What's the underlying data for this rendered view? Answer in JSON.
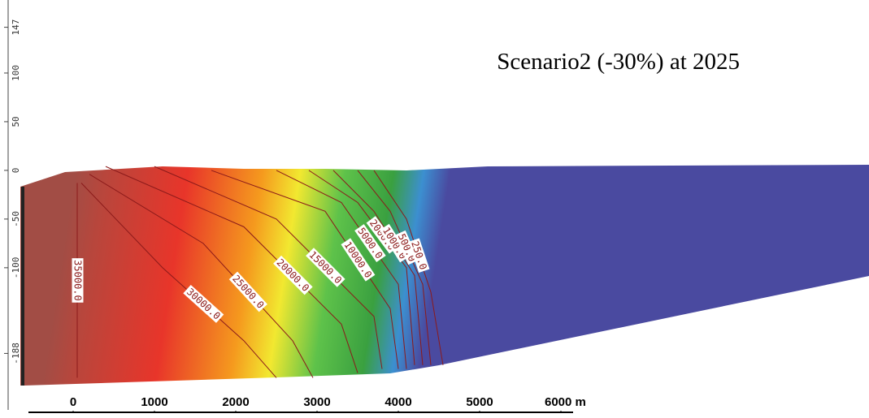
{
  "chart_data": {
    "type": "contour",
    "title": "Scenario2 (-30%) at 2025",
    "xlim": [
      -900,
      9790
    ],
    "ylim": [
      -221,
      175
    ],
    "xticks": [
      0,
      1000,
      2000,
      3000,
      4000,
      5000,
      {
        "value": 6000,
        "label": "6000 m"
      }
    ],
    "yticks": [
      147,
      100,
      50,
      0,
      -50,
      -100,
      -188
    ],
    "line_color": "#8b1a1a",
    "contours": [
      {
        "level": 35000,
        "label": "35000.0",
        "x": [
          50,
          50
        ],
        "y": [
          -13,
          -213
        ]
      },
      {
        "level": 30000,
        "label": "30000.0",
        "x": [
          100,
          1100,
          2100,
          2500
        ],
        "y": [
          -13,
          -100,
          -175,
          -213
        ]
      },
      {
        "level": 25000,
        "label": "25000.0",
        "x": [
          200,
          1600,
          2700,
          2950
        ],
        "y": [
          -4,
          -75,
          -175,
          -213
        ]
      },
      {
        "level": 20000,
        "label": "20000.0",
        "x": [
          400,
          2100,
          3300,
          3500
        ],
        "y": [
          4,
          -58,
          -158,
          -208
        ]
      },
      {
        "level": 15000,
        "label": "15000.0",
        "x": [
          1000,
          2500,
          3700,
          3800
        ],
        "y": [
          4,
          -50,
          -150,
          -204
        ]
      },
      {
        "level": 10000,
        "label": "10000.0",
        "x": [
          1700,
          3100,
          3900,
          4000
        ],
        "y": [
          0,
          -42,
          -142,
          -204
        ]
      },
      {
        "level": 5000,
        "label": "5000.0",
        "x": [
          2500,
          3300,
          4000,
          4100
        ],
        "y": [
          0,
          -33,
          -117,
          -204
        ]
      },
      {
        "level": 2000,
        "label": "2000.0",
        "x": [
          2900,
          3500,
          4100,
          4200
        ],
        "y": [
          0,
          -33,
          -100,
          -200
        ]
      },
      {
        "level": 1000,
        "label": "1000.0",
        "x": [
          3200,
          3700,
          4200,
          4300
        ],
        "y": [
          0,
          -42,
          -108,
          -200
        ]
      },
      {
        "level": 500,
        "label": "500.0",
        "x": [
          3500,
          3900,
          4300,
          4400
        ],
        "y": [
          0,
          -42,
          -117,
          -200
        ]
      },
      {
        "level": 250,
        "label": "250.0",
        "x": [
          3700,
          4100,
          4400,
          4550
        ],
        "y": [
          0,
          -50,
          -125,
          -200
        ]
      }
    ]
  }
}
